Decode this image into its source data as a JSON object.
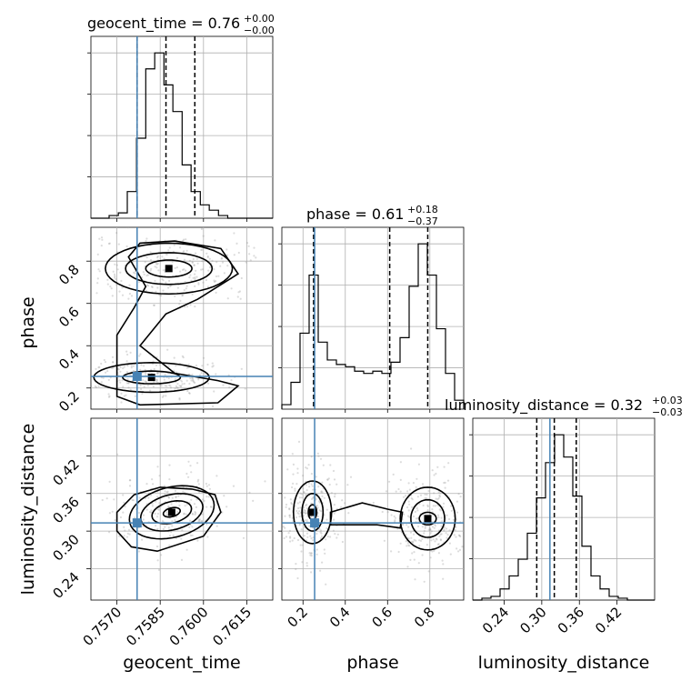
{
  "chart_data": {
    "type": "corner",
    "parameters": [
      "geocent_time",
      "phase",
      "luminosity_distance"
    ],
    "truths": {
      "geocent_time": 0.7577,
      "phase": 0.255,
      "luminosity_distance": 0.313
    },
    "titles": [
      {
        "param": "geocent_time",
        "prefix": "geocent_time = 0.76",
        "sup": "+0.00",
        "sub": "−0.00"
      },
      {
        "param": "phase",
        "prefix": "phase = 0.61",
        "sup": "+0.18",
        "sub": "−0.37"
      },
      {
        "param": "luminosity_distance",
        "prefix": "luminosity_distance = 0.32",
        "sup": "+0.03",
        "sub": "−0.03"
      }
    ],
    "axes": {
      "geocent_time": {
        "label": "geocent_time",
        "range": [
          0.7561,
          0.7624
        ],
        "ticks": [
          0.757,
          0.7585,
          0.76,
          0.7615
        ],
        "ticklabels": [
          "0.7570",
          "0.7585",
          "0.7600",
          "0.7615"
        ]
      },
      "phase": {
        "label": "phase",
        "range": [
          0.1,
          0.96
        ],
        "ticks": [
          0.2,
          0.4,
          0.6,
          0.8
        ],
        "ticklabels": [
          "0.2",
          "0.4",
          "0.6",
          "0.8"
        ]
      },
      "luminosity_distance": {
        "label": "luminosity_distance",
        "range": [
          0.19,
          0.48
        ],
        "ticks": [
          0.24,
          0.3,
          0.36,
          0.42
        ],
        "ticklabels": [
          "0.24",
          "0.30",
          "0.36",
          "0.42"
        ]
      }
    },
    "histograms": {
      "geocent_time": {
        "bin_edges": [
          0.7561,
          0.75642,
          0.75673,
          0.75705,
          0.75736,
          0.75768,
          0.758,
          0.75831,
          0.75863,
          0.75894,
          0.75926,
          0.75957,
          0.75989,
          0.7602,
          0.76052,
          0.76084,
          0.76115,
          0.76147,
          0.76178,
          0.7621,
          0.7624
        ],
        "counts": [
          0,
          0,
          1,
          2,
          10,
          30,
          56,
          62,
          50,
          40,
          20,
          10,
          5,
          3,
          1,
          0,
          0,
          0,
          0,
          0
        ],
        "quantiles": [
          0.7577,
          0.7587,
          0.7597
        ]
      },
      "phase": {
        "bin_edges": [
          0.1,
          0.143,
          0.186,
          0.229,
          0.272,
          0.315,
          0.358,
          0.401,
          0.444,
          0.487,
          0.53,
          0.573,
          0.616,
          0.659,
          0.702,
          0.745,
          0.788,
          0.831,
          0.874,
          0.917,
          0.96
        ],
        "counts": [
          2,
          12,
          34,
          60,
          30,
          22,
          20,
          19,
          17,
          16,
          17,
          16,
          21,
          32,
          55,
          74,
          60,
          36,
          16,
          4
        ],
        "quantiles": [
          0.25,
          0.61,
          0.79
        ]
      },
      "luminosity_distance": {
        "bin_edges": [
          0.19,
          0.2045,
          0.219,
          0.2335,
          0.248,
          0.2625,
          0.277,
          0.2915,
          0.306,
          0.3205,
          0.335,
          0.3495,
          0.364,
          0.3785,
          0.393,
          0.4075,
          0.422,
          0.4365,
          0.451,
          0.4655,
          0.48
        ],
        "counts": [
          0,
          1,
          2,
          6,
          13,
          22,
          36,
          55,
          74,
          89,
          77,
          56,
          29,
          13,
          6,
          2,
          1,
          0,
          0,
          0
        ],
        "quantiles": [
          0.292,
          0.32,
          0.355
        ]
      }
    },
    "contours_2d": {
      "phase_vs_geocent_time": {
        "x": "geocent_time",
        "y": "phase",
        "modes": [
          {
            "center": [
              0.7588,
              0.765
            ],
            "levels": [
              [
                0.0008,
                0.04
              ],
              [
                0.0015,
                0.075
              ],
              [
                0.0022,
                0.12
              ]
            ]
          },
          {
            "center": [
              0.7582,
              0.25
            ],
            "levels": [
              [
                0.001,
                0.03
              ],
              [
                0.002,
                0.07
              ]
            ]
          }
        ],
        "outer": [
          [
            0.7578,
            0.12
          ],
          [
            0.7605,
            0.13
          ],
          [
            0.7612,
            0.21
          ],
          [
            0.7605,
            0.235
          ],
          [
            0.759,
            0.27
          ],
          [
            0.7578,
            0.4
          ],
          [
            0.7587,
            0.55
          ],
          [
            0.7598,
            0.62
          ],
          [
            0.7612,
            0.74
          ],
          [
            0.7606,
            0.86
          ],
          [
            0.759,
            0.895
          ],
          [
            0.7578,
            0.885
          ],
          [
            0.7574,
            0.82
          ],
          [
            0.758,
            0.68
          ],
          [
            0.7576,
            0.58
          ],
          [
            0.757,
            0.45
          ],
          [
            0.757,
            0.3
          ],
          [
            0.757,
            0.16
          ]
        ]
      },
      "luminosity_distance_vs_geocent_time": {
        "x": "geocent_time",
        "y": "luminosity_distance",
        "modes": [
          {
            "center": [
              0.7589,
              0.33
            ],
            "levels": [
              [
                0.0003,
                0.007
              ],
              [
                0.0007,
                0.017
              ],
              [
                0.0011,
                0.028
              ],
              [
                0.0015,
                0.04
              ]
            ],
            "rotate": -0.25
          }
        ],
        "outer": [
          [
            0.7575,
            0.275
          ],
          [
            0.7584,
            0.268
          ],
          [
            0.76,
            0.292
          ],
          [
            0.7606,
            0.33
          ],
          [
            0.7604,
            0.358
          ],
          [
            0.7596,
            0.367
          ],
          [
            0.7585,
            0.37
          ],
          [
            0.7576,
            0.358
          ],
          [
            0.757,
            0.33
          ],
          [
            0.757,
            0.3
          ]
        ]
      },
      "luminosity_distance_vs_phase": {
        "x": "phase",
        "y": "luminosity_distance",
        "modes": [
          {
            "center": [
              0.245,
              0.33
            ],
            "levels": [
              [
                0.02,
                0.012
              ],
              [
                0.05,
                0.03
              ],
              [
                0.09,
                0.05
              ]
            ]
          },
          {
            "center": [
              0.79,
              0.32
            ],
            "levels": [
              [
                0.04,
                0.01
              ],
              [
                0.08,
                0.03
              ],
              [
                0.13,
                0.05
              ]
            ]
          }
        ],
        "bridge": [
          [
            0.33,
            0.33
          ],
          [
            0.48,
            0.345
          ],
          [
            0.6,
            0.335
          ],
          [
            0.67,
            0.33
          ],
          [
            0.66,
            0.305
          ],
          [
            0.55,
            0.31
          ],
          [
            0.4,
            0.31
          ],
          [
            0.33,
            0.31
          ]
        ]
      }
    },
    "grid": true
  }
}
